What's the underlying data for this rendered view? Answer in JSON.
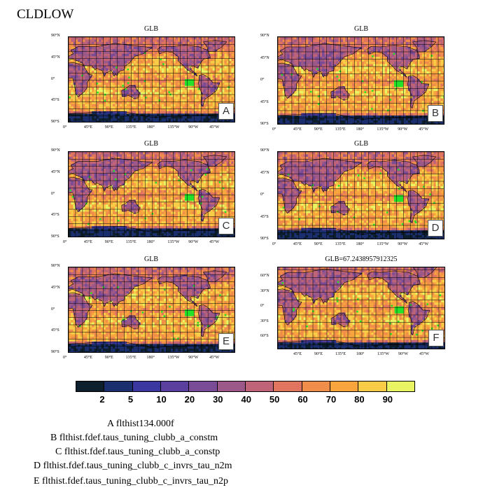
{
  "title": "CLDLOW",
  "panels": [
    {
      "id": "A",
      "title": "GLB"
    },
    {
      "id": "B",
      "title": "GLB"
    },
    {
      "id": "C",
      "title": "GLB"
    },
    {
      "id": "D",
      "title": "GLB"
    },
    {
      "id": "E",
      "title": "GLB"
    },
    {
      "id": "F",
      "title": "GLB=67.2438957912325"
    }
  ],
  "lat_ticks": [
    "90°N",
    "45°N",
    "0°",
    "45°S",
    "90°S"
  ],
  "lat_ticks_f": [
    "60°N",
    "30°N",
    "0°",
    "30°S",
    "60°S"
  ],
  "lon_ticks": [
    "0°",
    "45°E",
    "90°E",
    "135°E",
    "180°",
    "135°W",
    "90°W",
    "45°W"
  ],
  "lon_ticks_f": [
    "45°E",
    "90°E",
    "135°E",
    "180°",
    "135°W",
    "90°W",
    "45°W"
  ],
  "colorbar": {
    "colors": [
      "#0d1f2d",
      "#1b2e6e",
      "#3a37a0",
      "#5a3f9e",
      "#7a4b96",
      "#9c5888",
      "#bf6478",
      "#e0745f",
      "#f08d4a",
      "#f7a53c",
      "#f8cc47",
      "#e8f462"
    ],
    "labels": [
      "2",
      "5",
      "10",
      "20",
      "30",
      "40",
      "50",
      "60",
      "70",
      "80",
      "90"
    ]
  },
  "legend": [
    "A  flthist134.000f",
    "B  flthist.fdef.taus_tuning_clubb_a_constm",
    "C  flthist.fdef.taus_tuning_clubb_a_constp",
    "D  flthist.fdef.taus_tuning_clubb_c_invrs_tau_n2m",
    "E  flthist.fdef.taus_tuning_clubb_c_invrs_tau_n2p"
  ],
  "chart_data": {
    "type": "heatmap",
    "variable": "CLDLOW",
    "panel_titles": [
      "GLB",
      "GLB",
      "GLB",
      "GLB",
      "GLB",
      "GLB=67.2438957912325"
    ],
    "panel_labels": [
      "A",
      "B",
      "C",
      "D",
      "E",
      "F"
    ],
    "colorbar_levels": [
      2,
      5,
      10,
      20,
      30,
      40,
      50,
      60,
      70,
      80,
      90
    ],
    "global_mean_F": 67.2438957912325
  }
}
